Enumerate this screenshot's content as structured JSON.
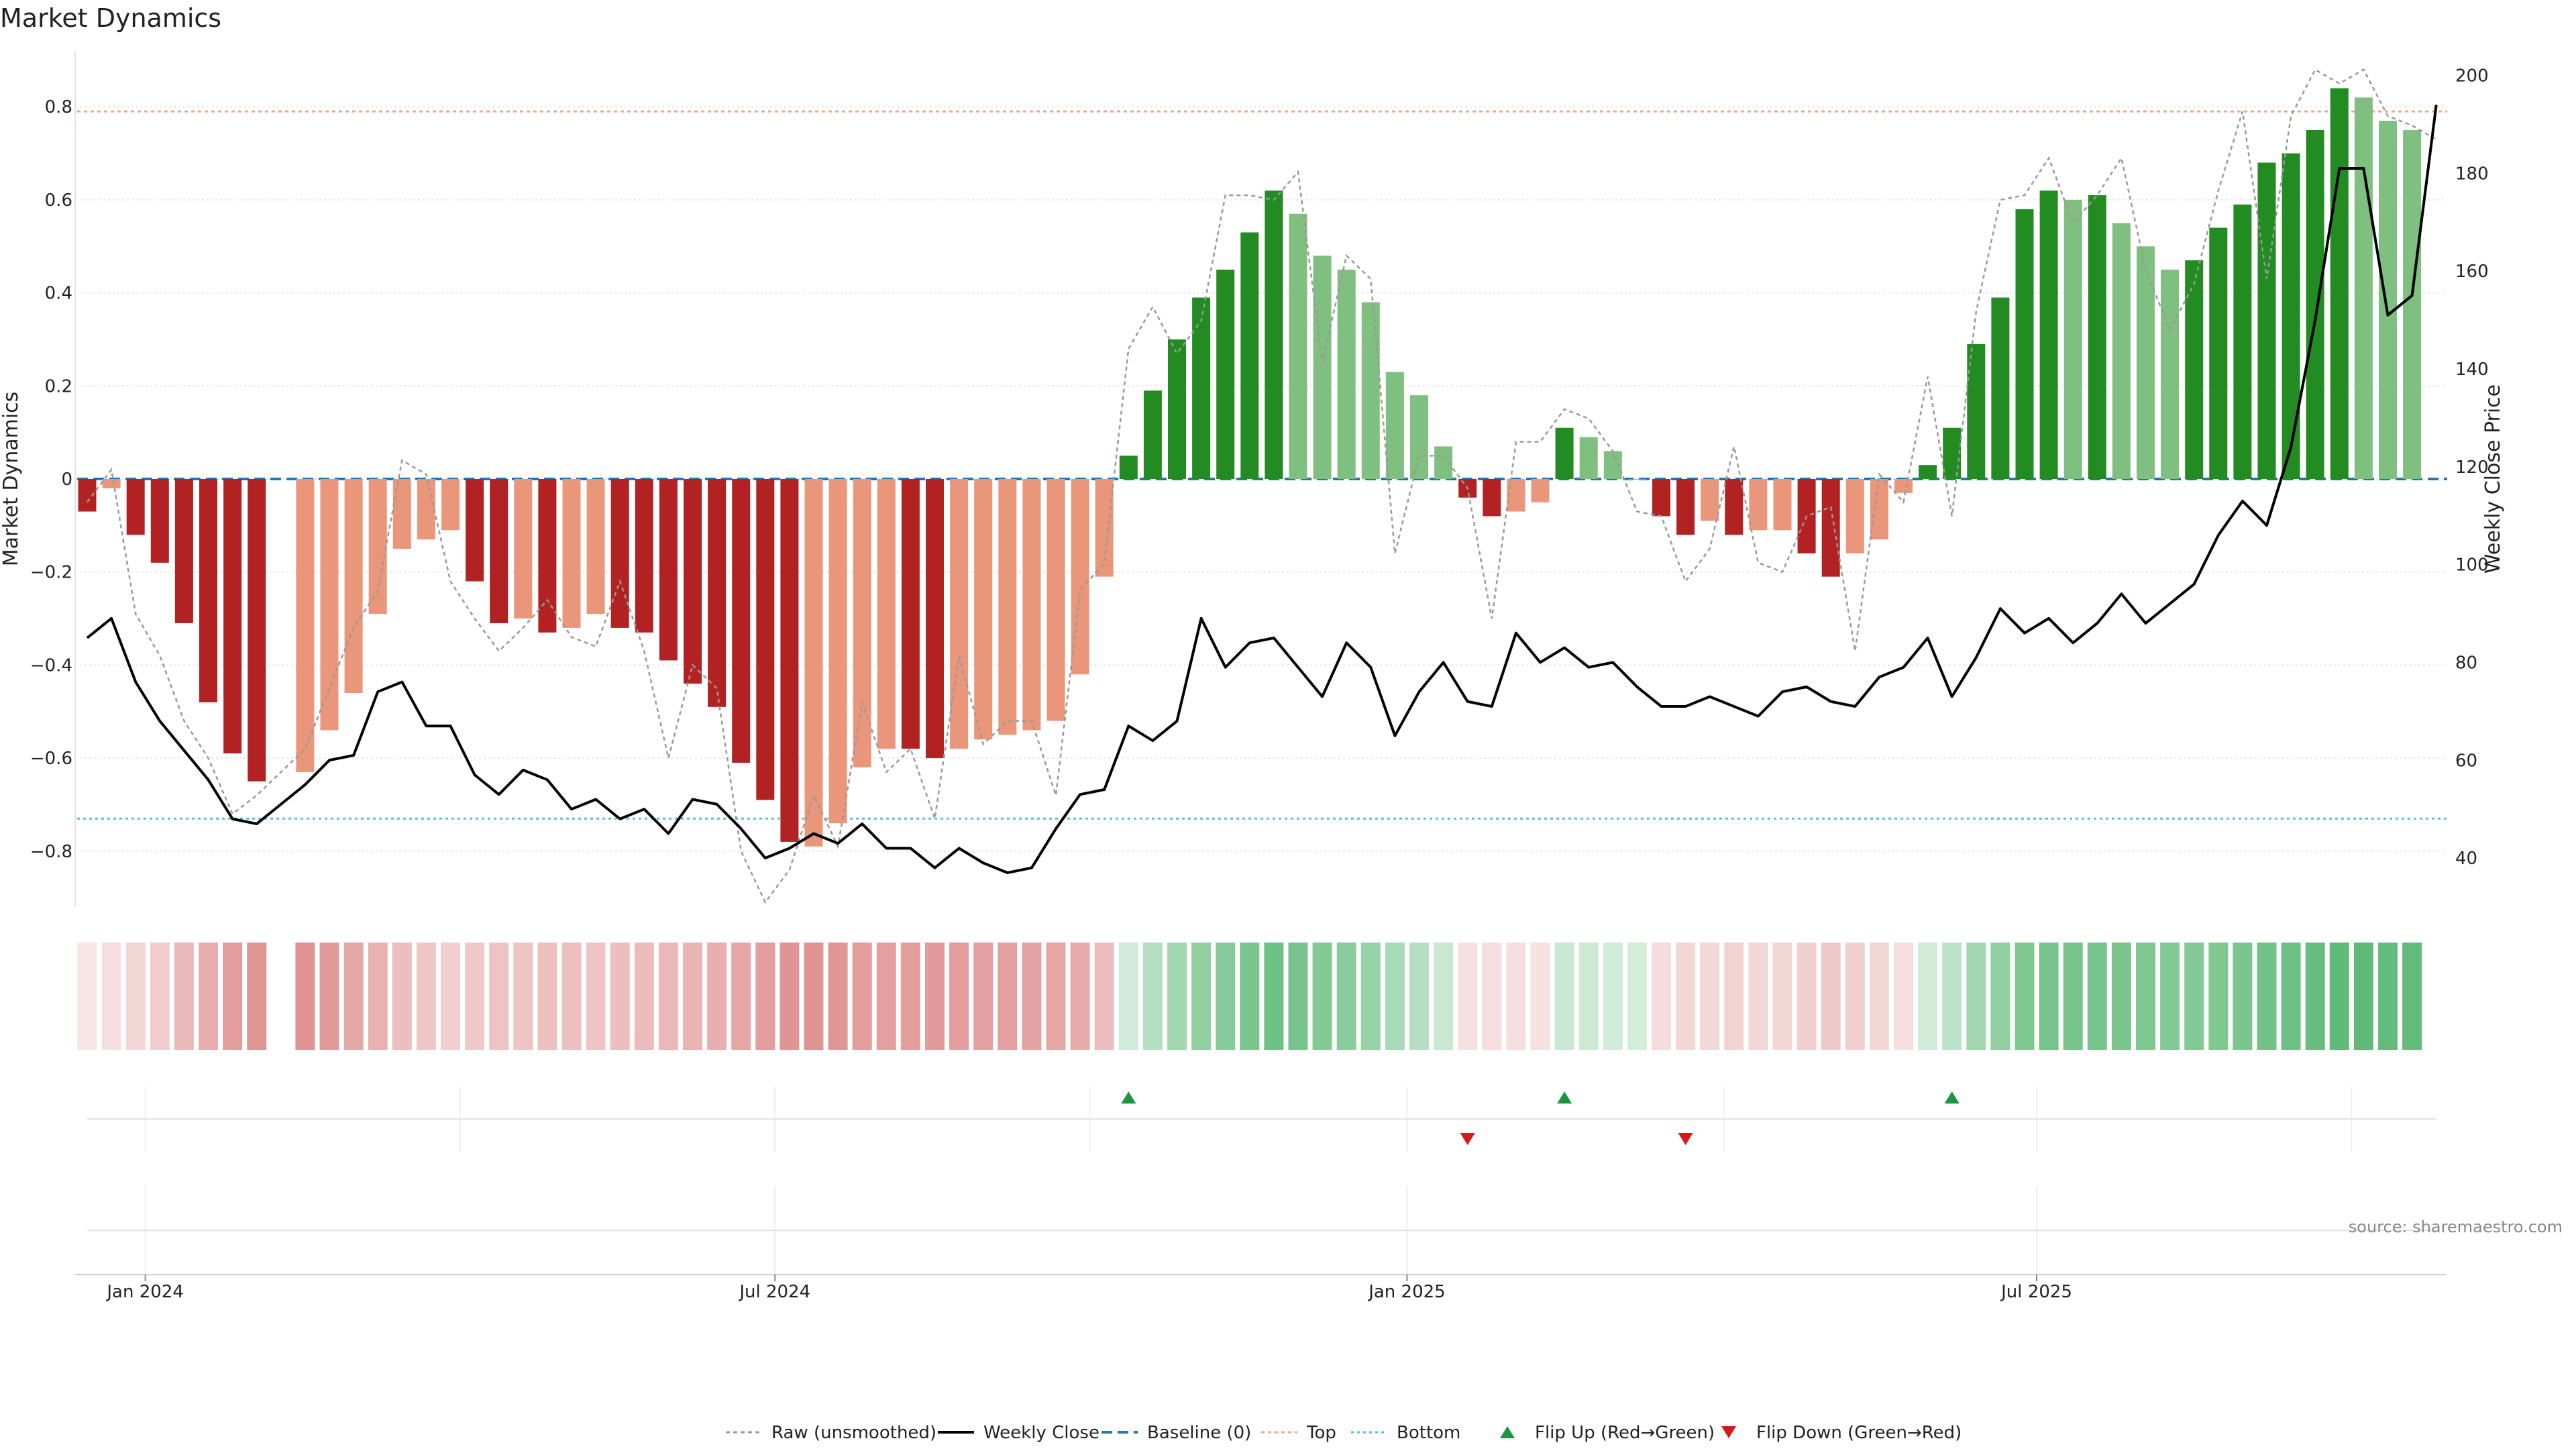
{
  "chart_data": {
    "type": "bar",
    "title": "Market Dynamics",
    "ylabel": "Market Dynamics",
    "y2label": "Weekly Close Price",
    "ylim": [
      -0.92,
      0.92
    ],
    "y2lim": [
      30,
      205
    ],
    "yticks": [
      {
        "v": 0.8,
        "label": "0.8"
      },
      {
        "v": 0.6,
        "label": "0.6"
      },
      {
        "v": 0.4,
        "label": "0.4"
      },
      {
        "v": 0.2,
        "label": "0.2"
      },
      {
        "v": 0,
        "label": "0"
      },
      {
        "v": -0.2,
        "label": "−0.2"
      },
      {
        "v": -0.4,
        "label": "−0.4"
      },
      {
        "v": -0.6,
        "label": "−0.6"
      },
      {
        "v": -0.8,
        "label": "−0.8"
      }
    ],
    "y2ticks": [
      {
        "v": 200,
        "label": "200"
      },
      {
        "v": 180,
        "label": "180"
      },
      {
        "v": 160,
        "label": "160"
      },
      {
        "v": 140,
        "label": "140"
      },
      {
        "v": 120,
        "label": "120"
      },
      {
        "v": 100,
        "label": "100"
      },
      {
        "v": 80,
        "label": "80"
      },
      {
        "v": 60,
        "label": "60"
      },
      {
        "v": 40,
        "label": "40"
      }
    ],
    "xticks": [
      {
        "week": 2.4,
        "label": "Jan 2024"
      },
      {
        "week": 28.4,
        "label": "Jul 2024"
      },
      {
        "week": 54.5,
        "label": "Jan 2025"
      },
      {
        "week": 80.5,
        "label": "Jul 2025"
      }
    ],
    "minor_vlines": [
      15.4,
      41.4,
      67.6,
      93.5
    ],
    "baseline": 0,
    "top": 0.79,
    "bottom": -0.73,
    "colors": {
      "strong_red": "#b22222",
      "light_red": "#e9967a",
      "strong_green": "#228b22",
      "light_green": "#7fbf7f",
      "close_line": "#000000",
      "raw_line": "#999999",
      "baseline": "#1f77b4",
      "top": "#f4a582",
      "bottom": "#4fc3d9",
      "flip_up": "#1a9641",
      "flip_down": "#d7191c",
      "heat_red": "#d46a6a",
      "heat_green": "#3cab5a"
    },
    "bars": [
      [
        -0.07,
        "sr"
      ],
      [
        -0.02,
        "lr"
      ],
      [
        -0.12,
        "sr"
      ],
      [
        -0.18,
        "sr"
      ],
      [
        -0.31,
        "sr"
      ],
      [
        -0.48,
        "sr"
      ],
      [
        -0.59,
        "sr"
      ],
      [
        -0.65,
        "sr"
      ],
      [
        null,
        ""
      ],
      [
        -0.63,
        "lr"
      ],
      [
        -0.54,
        "lr"
      ],
      [
        -0.46,
        "lr"
      ],
      [
        -0.29,
        "lr"
      ],
      [
        -0.15,
        "lr"
      ],
      [
        -0.13,
        "lr"
      ],
      [
        -0.11,
        "lr"
      ],
      [
        -0.22,
        "sr"
      ],
      [
        -0.31,
        "sr"
      ],
      [
        -0.3,
        "lr"
      ],
      [
        -0.33,
        "sr"
      ],
      [
        -0.32,
        "lr"
      ],
      [
        -0.29,
        "lr"
      ],
      [
        -0.32,
        "sr"
      ],
      [
        -0.33,
        "sr"
      ],
      [
        -0.39,
        "sr"
      ],
      [
        -0.44,
        "sr"
      ],
      [
        -0.49,
        "sr"
      ],
      [
        -0.61,
        "sr"
      ],
      [
        -0.69,
        "sr"
      ],
      [
        -0.78,
        "sr"
      ],
      [
        -0.79,
        "lr"
      ],
      [
        -0.74,
        "lr"
      ],
      [
        -0.62,
        "lr"
      ],
      [
        -0.58,
        "lr"
      ],
      [
        -0.58,
        "sr"
      ],
      [
        -0.6,
        "sr"
      ],
      [
        -0.58,
        "lr"
      ],
      [
        -0.56,
        "lr"
      ],
      [
        -0.55,
        "lr"
      ],
      [
        -0.54,
        "lr"
      ],
      [
        -0.52,
        "lr"
      ],
      [
        -0.42,
        "lr"
      ],
      [
        -0.21,
        "lr"
      ],
      [
        0.05,
        "sg"
      ],
      [
        0.19,
        "sg"
      ],
      [
        0.3,
        "sg"
      ],
      [
        0.39,
        "sg"
      ],
      [
        0.45,
        "sg"
      ],
      [
        0.53,
        "sg"
      ],
      [
        0.62,
        "sg"
      ],
      [
        0.57,
        "lg"
      ],
      [
        0.48,
        "lg"
      ],
      [
        0.45,
        "lg"
      ],
      [
        0.38,
        "lg"
      ],
      [
        0.23,
        "lg"
      ],
      [
        0.18,
        "lg"
      ],
      [
        0.07,
        "lg"
      ],
      [
        -0.04,
        "sr"
      ],
      [
        -0.08,
        "sr"
      ],
      [
        -0.07,
        "lr"
      ],
      [
        -0.05,
        "lr"
      ],
      [
        0.11,
        "sg"
      ],
      [
        0.09,
        "lg"
      ],
      [
        0.06,
        "lg"
      ],
      [
        0.0,
        "lg"
      ],
      [
        -0.08,
        "sr"
      ],
      [
        -0.12,
        "sr"
      ],
      [
        -0.09,
        "lr"
      ],
      [
        -0.12,
        "sr"
      ],
      [
        -0.11,
        "lr"
      ],
      [
        -0.11,
        "lr"
      ],
      [
        -0.16,
        "sr"
      ],
      [
        -0.21,
        "sr"
      ],
      [
        -0.16,
        "lr"
      ],
      [
        -0.13,
        "lr"
      ],
      [
        -0.03,
        "lr"
      ],
      [
        0.03,
        "sg"
      ],
      [
        0.11,
        "sg"
      ],
      [
        0.29,
        "sg"
      ],
      [
        0.39,
        "sg"
      ],
      [
        0.58,
        "sg"
      ],
      [
        0.62,
        "sg"
      ],
      [
        0.6,
        "lg"
      ],
      [
        0.61,
        "sg"
      ],
      [
        0.55,
        "lg"
      ],
      [
        0.5,
        "lg"
      ],
      [
        0.45,
        "lg"
      ],
      [
        0.47,
        "sg"
      ],
      [
        0.54,
        "sg"
      ],
      [
        0.59,
        "sg"
      ],
      [
        0.68,
        "sg"
      ],
      [
        0.7,
        "sg"
      ],
      [
        0.75,
        "sg"
      ],
      [
        0.84,
        "sg"
      ],
      [
        0.82,
        "lg"
      ],
      [
        0.77,
        "lg"
      ],
      [
        0.75,
        "lg"
      ]
    ],
    "raw": [
      -0.05,
      0.02,
      -0.29,
      -0.38,
      -0.52,
      -0.6,
      -0.72,
      -0.68,
      -0.63,
      -0.58,
      -0.45,
      -0.32,
      -0.24,
      0.04,
      0.01,
      -0.22,
      -0.3,
      -0.37,
      -0.32,
      -0.26,
      -0.34,
      -0.36,
      -0.22,
      -0.37,
      -0.6,
      -0.4,
      -0.45,
      -0.8,
      -0.91,
      -0.84,
      -0.68,
      -0.79,
      -0.48,
      -0.63,
      -0.58,
      -0.73,
      -0.38,
      -0.57,
      -0.52,
      -0.52,
      -0.68,
      -0.24,
      -0.18,
      0.28,
      0.37,
      0.27,
      0.34,
      0.61,
      0.61,
      0.6,
      0.66,
      0.25,
      0.48,
      0.43,
      -0.16,
      0.05,
      0.05,
      -0.02,
      -0.3,
      0.08,
      0.08,
      0.15,
      0.13,
      0.06,
      -0.07,
      -0.08,
      -0.22,
      -0.15,
      0.07,
      -0.18,
      -0.2,
      -0.08,
      -0.06,
      -0.37,
      0.01,
      -0.05,
      0.22,
      -0.08,
      0.36,
      0.6,
      0.61,
      0.69,
      0.55,
      0.61,
      0.69,
      0.45,
      0.32,
      0.42,
      0.62,
      0.79,
      0.43,
      0.78,
      0.88,
      0.85,
      0.88,
      0.78,
      0.76,
      0.73
    ],
    "close": [
      85,
      89,
      76,
      68,
      62,
      56,
      48,
      47,
      51,
      55,
      60,
      61,
      74,
      76,
      67,
      67,
      57,
      53,
      58,
      56,
      50,
      52,
      48,
      50,
      45,
      52,
      51,
      46,
      40,
      42,
      45,
      43,
      47,
      42,
      42,
      38,
      42,
      39,
      37,
      38,
      46,
      53,
      54,
      67,
      64,
      68,
      89,
      79,
      84,
      85,
      79,
      73,
      84,
      79,
      65,
      74,
      80,
      72,
      71,
      86,
      80,
      83,
      79,
      80,
      75,
      71,
      71,
      73,
      71,
      69,
      74,
      75,
      72,
      71,
      77,
      79,
      85,
      73,
      81,
      91,
      86,
      89,
      84,
      88,
      94,
      88,
      92,
      96,
      106,
      113,
      108,
      124,
      150,
      181,
      181,
      151,
      155,
      194
    ],
    "heat": [
      0.18,
      0.22,
      0.28,
      0.34,
      0.48,
      0.54,
      0.66,
      0.7,
      null,
      0.72,
      0.68,
      0.6,
      0.52,
      0.44,
      0.38,
      0.32,
      0.36,
      0.4,
      0.4,
      0.42,
      0.42,
      0.4,
      0.44,
      0.46,
      0.48,
      0.5,
      0.54,
      0.6,
      0.66,
      0.72,
      0.72,
      0.7,
      0.66,
      0.64,
      0.66,
      0.68,
      0.66,
      0.64,
      0.64,
      0.62,
      0.6,
      0.56,
      0.44,
      0.24,
      0.38,
      0.48,
      0.56,
      0.62,
      0.68,
      0.74,
      0.7,
      0.64,
      0.6,
      0.54,
      0.44,
      0.38,
      0.28,
      0.2,
      0.22,
      0.22,
      0.2,
      0.28,
      0.26,
      0.24,
      0.22,
      0.24,
      0.28,
      0.26,
      0.3,
      0.28,
      0.28,
      0.32,
      0.36,
      0.32,
      0.28,
      0.22,
      0.24,
      0.34,
      0.48,
      0.56,
      0.66,
      0.7,
      0.7,
      0.7,
      0.68,
      0.66,
      0.64,
      0.64,
      0.66,
      0.68,
      0.72,
      0.74,
      0.78,
      0.82,
      0.82,
      0.8,
      0.8
    ],
    "flips_up": [
      43,
      61,
      77
    ],
    "flips_down": [
      57,
      66
    ],
    "legend": [
      {
        "kind": "raw",
        "label": "Raw (unsmoothed)"
      },
      {
        "kind": "close",
        "label": "Weekly Close"
      },
      {
        "kind": "baseline",
        "label": "Baseline (0)"
      },
      {
        "kind": "top",
        "label": "Top"
      },
      {
        "kind": "bottom",
        "label": "Bottom"
      },
      {
        "kind": "flipup",
        "label": "Flip Up (Red→Green)"
      },
      {
        "kind": "flipdown",
        "label": "Flip Down (Green→Red)"
      }
    ],
    "source": "source: sharemaestro.com"
  }
}
